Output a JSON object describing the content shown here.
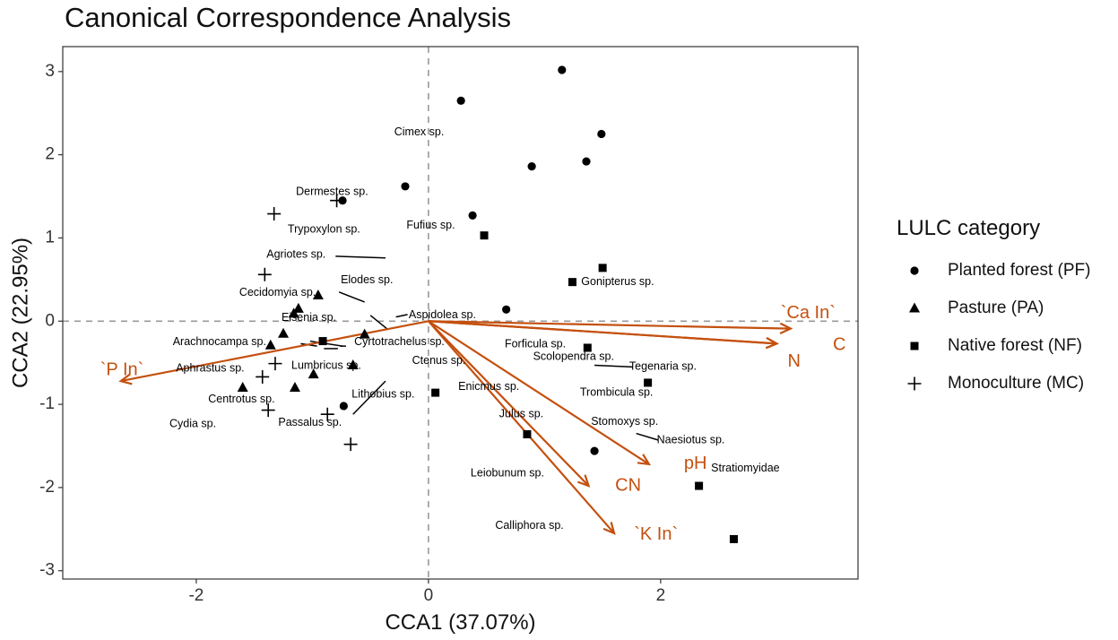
{
  "chart_data": {
    "type": "scatter",
    "title": "Canonical Correspondence Analysis",
    "xlabel": "CCA1 (37.07%)",
    "ylabel": "CCA2 (22.95%)",
    "xlim": [
      -3.15,
      3.7
    ],
    "ylim": [
      -3.1,
      3.3
    ],
    "xticks": [
      -2,
      0,
      2
    ],
    "yticks": [
      3,
      2,
      1,
      0,
      -1,
      -2,
      -3
    ],
    "reference_lines": {
      "x": 0,
      "y": 0,
      "style": "dashed"
    },
    "legend": {
      "title": "LULC category",
      "position": "right",
      "entries": [
        {
          "key": "PF",
          "label": "Planted forest (PF)",
          "marker": "circle"
        },
        {
          "key": "PA",
          "label": "Pasture (PA)",
          "marker": "triangle"
        },
        {
          "key": "NF",
          "label": "Native forest (NF)",
          "marker": "square"
        },
        {
          "key": "MC",
          "label": "Monoculture (MC)",
          "marker": "plus"
        }
      ]
    },
    "series": [
      {
        "name": "Planted forest (PF)",
        "marker": "circle",
        "points": [
          {
            "x": 1.15,
            "y": 3.02
          },
          {
            "x": 0.28,
            "y": 2.65
          },
          {
            "x": 1.49,
            "y": 2.25
          },
          {
            "x": 1.36,
            "y": 1.92
          },
          {
            "x": 0.89,
            "y": 1.86
          },
          {
            "x": -0.2,
            "y": 1.62
          },
          {
            "x": 0.38,
            "y": 1.27
          },
          {
            "x": 0.67,
            "y": 0.14
          },
          {
            "x": -0.74,
            "y": 1.45
          },
          {
            "x": 1.43,
            "y": -1.56
          },
          {
            "x": -0.73,
            "y": -1.02
          }
        ]
      },
      {
        "name": "Pasture (PA)",
        "marker": "triangle",
        "points": [
          {
            "x": -0.95,
            "y": 0.31
          },
          {
            "x": -1.12,
            "y": 0.15
          },
          {
            "x": -1.16,
            "y": 0.09
          },
          {
            "x": -1.25,
            "y": -0.15
          },
          {
            "x": -1.36,
            "y": -0.29
          },
          {
            "x": -0.55,
            "y": -0.16
          },
          {
            "x": -0.65,
            "y": -0.53
          },
          {
            "x": -0.99,
            "y": -0.64
          },
          {
            "x": -1.15,
            "y": -0.8
          },
          {
            "x": -1.6,
            "y": -0.8
          }
        ]
      },
      {
        "name": "Native forest (NF)",
        "marker": "square",
        "points": [
          {
            "x": 0.48,
            "y": 1.03
          },
          {
            "x": 1.5,
            "y": 0.64
          },
          {
            "x": 1.24,
            "y": 0.47
          },
          {
            "x": 1.37,
            "y": -0.32
          },
          {
            "x": 1.89,
            "y": -0.74
          },
          {
            "x": -0.91,
            "y": -0.24
          },
          {
            "x": 0.06,
            "y": -0.86
          },
          {
            "x": 0.85,
            "y": -1.36
          },
          {
            "x": 2.33,
            "y": -1.98
          },
          {
            "x": 2.63,
            "y": -2.62
          }
        ]
      },
      {
        "name": "Monoculture (MC)",
        "marker": "plus",
        "points": [
          {
            "x": -0.79,
            "y": 1.45
          },
          {
            "x": -1.33,
            "y": 1.29
          },
          {
            "x": -1.41,
            "y": 0.56
          },
          {
            "x": -1.32,
            "y": -0.51
          },
          {
            "x": -1.43,
            "y": -0.67
          },
          {
            "x": -1.38,
            "y": -1.07
          },
          {
            "x": -0.87,
            "y": -1.12
          },
          {
            "x": -0.67,
            "y": -1.48
          }
        ]
      }
    ],
    "species": [
      {
        "name": "Cimex sp.",
        "x": -0.08,
        "y": 2.27
      },
      {
        "name": "Dermestes sp.",
        "x": -0.83,
        "y": 1.55
      },
      {
        "name": "Fufius sp.",
        "x": 0.02,
        "y": 1.15
      },
      {
        "name": "Trypoxylon sp.",
        "x": -0.9,
        "y": 1.1
      },
      {
        "name": "Agriotes sp.",
        "x": -1.14,
        "y": 0.8
      },
      {
        "name": "Elodes sp.",
        "x": -0.53,
        "y": 0.49
      },
      {
        "name": "Gonipterus sp.",
        "x": 1.63,
        "y": 0.47
      },
      {
        "name": "Cecidomyia sp.",
        "x": -1.3,
        "y": 0.34
      },
      {
        "name": "Eisenia sp.",
        "x": -1.03,
        "y": 0.04
      },
      {
        "name": "Aspidolea sp.",
        "x": 0.12,
        "y": 0.07
      },
      {
        "name": "Arachnocampa sp.",
        "x": -1.8,
        "y": -0.25
      },
      {
        "name": "Cyrtotrachelus sp.",
        "x": -0.25,
        "y": -0.25
      },
      {
        "name": "Forficula sp.",
        "x": 0.92,
        "y": -0.28
      },
      {
        "name": "Scolopendra sp.",
        "x": 1.25,
        "y": -0.43
      },
      {
        "name": "Ctenus sp.",
        "x": 0.09,
        "y": -0.48
      },
      {
        "name": "Tegenaria sp.",
        "x": 2.02,
        "y": -0.55
      },
      {
        "name": "Aphrastus sp.",
        "x": -1.88,
        "y": -0.57
      },
      {
        "name": "Lumbricus sp.",
        "x": -0.88,
        "y": -0.54
      },
      {
        "name": "Enicmus sp.",
        "x": 0.52,
        "y": -0.79
      },
      {
        "name": "Trombicula sp.",
        "x": 1.62,
        "y": -0.86
      },
      {
        "name": "Lithobius sp.",
        "x": -0.39,
        "y": -0.88
      },
      {
        "name": "Centrotus sp.",
        "x": -1.61,
        "y": -0.94
      },
      {
        "name": "Julus sp.",
        "x": 0.8,
        "y": -1.12
      },
      {
        "name": "Stomoxys sp.",
        "x": 1.69,
        "y": -1.21
      },
      {
        "name": "Cydia sp.",
        "x": -2.03,
        "y": -1.24
      },
      {
        "name": "Passalus sp.",
        "x": -1.02,
        "y": -1.22
      },
      {
        "name": "Naesiotus sp.",
        "x": 2.26,
        "y": -1.43
      },
      {
        "name": "Stratiomyidae",
        "x": 2.73,
        "y": -1.77
      },
      {
        "name": "Leiobunum sp.",
        "x": 0.68,
        "y": -1.83
      },
      {
        "name": "Calliphora sp.",
        "x": 0.87,
        "y": -2.46
      }
    ],
    "env_vectors": [
      {
        "name": "`Ca In`",
        "x": 3.12,
        "y": -0.09,
        "label_x": 3.27,
        "label_y": 0.09
      },
      {
        "name": "C",
        "x": 3.0,
        "y": -0.27,
        "label_x": 3.54,
        "label_y": -0.29
      },
      {
        "name": "N",
        "x": 3.0,
        "y": -0.27,
        "label_x": 3.15,
        "label_y": -0.49
      },
      {
        "name": "`P In`",
        "x": -2.65,
        "y": -0.72,
        "label_x": -2.64,
        "label_y": -0.59
      },
      {
        "name": "pH",
        "x": 1.9,
        "y": -1.72,
        "label_x": 2.3,
        "label_y": -1.72
      },
      {
        "name": "CN",
        "x": 1.38,
        "y": -1.98,
        "label_x": 1.72,
        "label_y": -1.98
      },
      {
        "name": "`K In`",
        "x": 1.6,
        "y": -2.55,
        "label_x": 1.96,
        "label_y": -2.57
      }
    ]
  }
}
